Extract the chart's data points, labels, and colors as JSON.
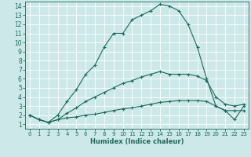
{
  "xlabel": "Humidex (Indice chaleur)",
  "bg_color": "#cce8e8",
  "grid_color": "#ffffff",
  "line_color": "#1a6b5a",
  "xlim": [
    -0.5,
    23.5
  ],
  "ylim": [
    0.5,
    14.5
  ],
  "xticks": [
    0,
    1,
    2,
    3,
    4,
    5,
    6,
    7,
    8,
    9,
    10,
    11,
    12,
    13,
    14,
    15,
    16,
    17,
    18,
    19,
    20,
    21,
    22,
    23
  ],
  "yticks": [
    1,
    2,
    3,
    4,
    5,
    6,
    7,
    8,
    9,
    10,
    11,
    12,
    13,
    14
  ],
  "curve1_x": [
    0,
    1,
    2,
    3,
    4,
    5,
    6,
    7,
    8,
    9,
    10,
    11,
    12,
    13,
    14,
    15,
    16,
    17,
    18,
    19,
    20,
    21,
    22,
    23
  ],
  "curve1_y": [
    2,
    1.5,
    1.2,
    2.0,
    3.5,
    4.8,
    6.5,
    7.5,
    9.5,
    11,
    11,
    12.5,
    13,
    13.5,
    14.2,
    14,
    13.5,
    12,
    9.5,
    6,
    3,
    2.5,
    2.5,
    2.5
  ],
  "curve2_x": [
    0,
    1,
    2,
    3,
    4,
    5,
    6,
    7,
    8,
    9,
    10,
    11,
    12,
    13,
    14,
    15,
    16,
    17,
    18,
    19,
    20,
    21,
    22,
    23
  ],
  "curve2_y": [
    2,
    1.5,
    1.2,
    1.5,
    2.2,
    2.8,
    3.5,
    4.0,
    4.5,
    5.0,
    5.5,
    5.8,
    6.2,
    6.5,
    6.8,
    6.5,
    6.5,
    6.5,
    6.3,
    5.8,
    4.0,
    3.2,
    3.0,
    3.2
  ],
  "curve3_x": [
    0,
    1,
    2,
    3,
    4,
    5,
    6,
    7,
    8,
    9,
    10,
    11,
    12,
    13,
    14,
    15,
    16,
    17,
    18,
    19,
    20,
    21,
    22,
    23
  ],
  "curve3_y": [
    2,
    1.5,
    1.2,
    1.5,
    1.7,
    1.8,
    2.0,
    2.1,
    2.3,
    2.5,
    2.7,
    2.8,
    3.0,
    3.2,
    3.4,
    3.5,
    3.6,
    3.6,
    3.6,
    3.5,
    3.0,
    2.5,
    1.5,
    3.0
  ]
}
